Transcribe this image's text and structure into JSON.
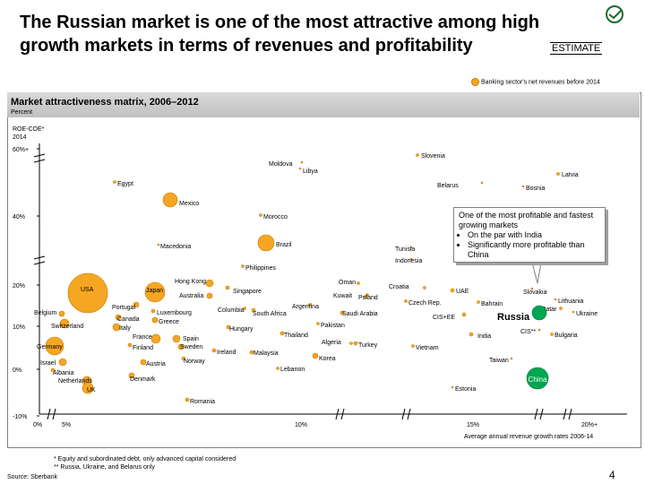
{
  "title": "The Russian market is one of the most attractive among high growth markets in terms of revenues and profitability",
  "estimate_tag": "ESTIMATE",
  "legend_text": "Banking sector's net revenues before 2014",
  "panel_title": "Market attractiveness matrix, 2006–2012",
  "panel_unit": "Percent",
  "callout": {
    "heading": "One of the most profitable and fastest growing markets",
    "bullets": [
      "On the par with India",
      "Significantly more profitable than China"
    ]
  },
  "footnotes": [
    "* Equity and subordinated debt, only advanced capital considered",
    "** Russia, Ukraine, and Belarus only"
  ],
  "source": "Source: Sberbank",
  "page_number": "4",
  "logo_text": "СБЕРБАНК РОССИИ",
  "colors": {
    "bubble_fill": "#f5a623",
    "bubble_stroke": "#c77c00",
    "highlight": "#00a651",
    "axis": "#000000"
  },
  "chart_data": {
    "type": "scatter",
    "ylabel": "ROE-COE*\n2014",
    "xlabel": "Average annual revenue growth rates 2006-14",
    "y_ticks": [
      "60%+",
      "40%",
      "20%",
      "10%",
      "0%",
      "-10%"
    ],
    "x_ticks": [
      "0%",
      "5%",
      "10%",
      "15%",
      "20%+"
    ],
    "points": [
      {
        "name": "Slovenia",
        "label": "Slovenia"
      },
      {
        "name": "Moldova",
        "label": "Moldova"
      },
      {
        "name": "Libya",
        "label": "Libya"
      },
      {
        "name": "Latvia",
        "label": "Latvia"
      },
      {
        "name": "Egypt",
        "label": "Egypt"
      },
      {
        "name": "Belarus",
        "label": "Belarus"
      },
      {
        "name": "Bosnia",
        "label": "Bosnia"
      },
      {
        "name": "Mexico",
        "label": "Mexico"
      },
      {
        "name": "Morocco",
        "label": "Morocco"
      },
      {
        "name": "Macedonia",
        "label": "Macedonia"
      },
      {
        "name": "Brazil",
        "label": "Brazil"
      },
      {
        "name": "Tunisia",
        "label": "Tunisia"
      },
      {
        "name": "Indonesia",
        "label": "Indonesia"
      },
      {
        "name": "Philippines",
        "label": "Philippines"
      },
      {
        "name": "USA",
        "label": "USA"
      },
      {
        "name": "Japan",
        "label": "Japan"
      },
      {
        "name": "Hong Kong",
        "label": "Hong Kong"
      },
      {
        "name": "Australia",
        "label": "Australia"
      },
      {
        "name": "Singapore",
        "label": "Singapore"
      },
      {
        "name": "Oman",
        "label": "Oman"
      },
      {
        "name": "Kuwait",
        "label": "Kuwait"
      },
      {
        "name": "Poland",
        "label": "Poland"
      },
      {
        "name": "Croatia",
        "label": "Croatia"
      },
      {
        "name": "UAE",
        "label": "UAE"
      },
      {
        "name": "Slovakia",
        "label": "Slovakia"
      },
      {
        "name": "Lithuania",
        "label": "Lithuania"
      },
      {
        "name": "Argentina",
        "label": "Argentina"
      },
      {
        "name": "Columbia",
        "label": "Columbia"
      },
      {
        "name": "South Africa",
        "label": "South Africa"
      },
      {
        "name": "Czech Rep.",
        "label": "Czech Rep."
      },
      {
        "name": "Bahrain",
        "label": "Bahrain"
      },
      {
        "name": "Qatar",
        "label": "Qatar"
      },
      {
        "name": "Ukraine",
        "label": "Ukraine"
      },
      {
        "name": "Russia",
        "label": "Russia"
      },
      {
        "name": "Belgium",
        "label": "Belgium"
      },
      {
        "name": "Portugal",
        "label": "Portugal"
      },
      {
        "name": "Luxembourg",
        "label": "Luxembourg"
      },
      {
        "name": "Canada",
        "label": "Canada"
      },
      {
        "name": "Switzerland",
        "label": "Switzerland"
      },
      {
        "name": "Italy",
        "label": "Italy"
      },
      {
        "name": "Greece",
        "label": "Greece"
      },
      {
        "name": "Hungary",
        "label": "Hungary"
      },
      {
        "name": "Saudi Arabia",
        "label": "Saudi Arabia"
      },
      {
        "name": "Pakistan",
        "label": "Pakistan"
      },
      {
        "name": "CIS+EE",
        "label": "CIS+EE"
      },
      {
        "name": "India",
        "label": "India"
      },
      {
        "name": "CIS**",
        "label": "CIS**"
      },
      {
        "name": "Bulgaria",
        "label": "Bulgaria"
      },
      {
        "name": "France",
        "label": "France"
      },
      {
        "name": "Spain",
        "label": "Spain"
      },
      {
        "name": "Thailand",
        "label": "Thailand"
      },
      {
        "name": "Algeria",
        "label": "Algeria"
      },
      {
        "name": "Turkey",
        "label": "Turkey"
      },
      {
        "name": "Vietnam",
        "label": "Vietnam"
      },
      {
        "name": "Germany",
        "label": "Germany"
      },
      {
        "name": "Finland",
        "label": "Finland"
      },
      {
        "name": "Sweden",
        "label": "Sweden"
      },
      {
        "name": "Ireland",
        "label": "Ireland"
      },
      {
        "name": "Malaysia",
        "label": "Malaysia"
      },
      {
        "name": "Korea",
        "label": "Korea"
      },
      {
        "name": "Taiwan",
        "label": "Taiwan"
      },
      {
        "name": "Israel",
        "label": "Israel"
      },
      {
        "name": "Albania",
        "label": "Albania"
      },
      {
        "name": "Netherlands",
        "label": "Netherlands"
      },
      {
        "name": "UK",
        "label": "UK"
      },
      {
        "name": "Austria",
        "label": "Austria"
      },
      {
        "name": "Norway",
        "label": "Norway"
      },
      {
        "name": "Denmark",
        "label": "Denmark"
      },
      {
        "name": "Lebanon",
        "label": "Lebanon"
      },
      {
        "name": "China",
        "label": "China"
      },
      {
        "name": "Estonia",
        "label": "Estonia"
      },
      {
        "name": "Romania",
        "label": "Romania"
      }
    ],
    "grid": false,
    "legend_position": "top-right"
  }
}
